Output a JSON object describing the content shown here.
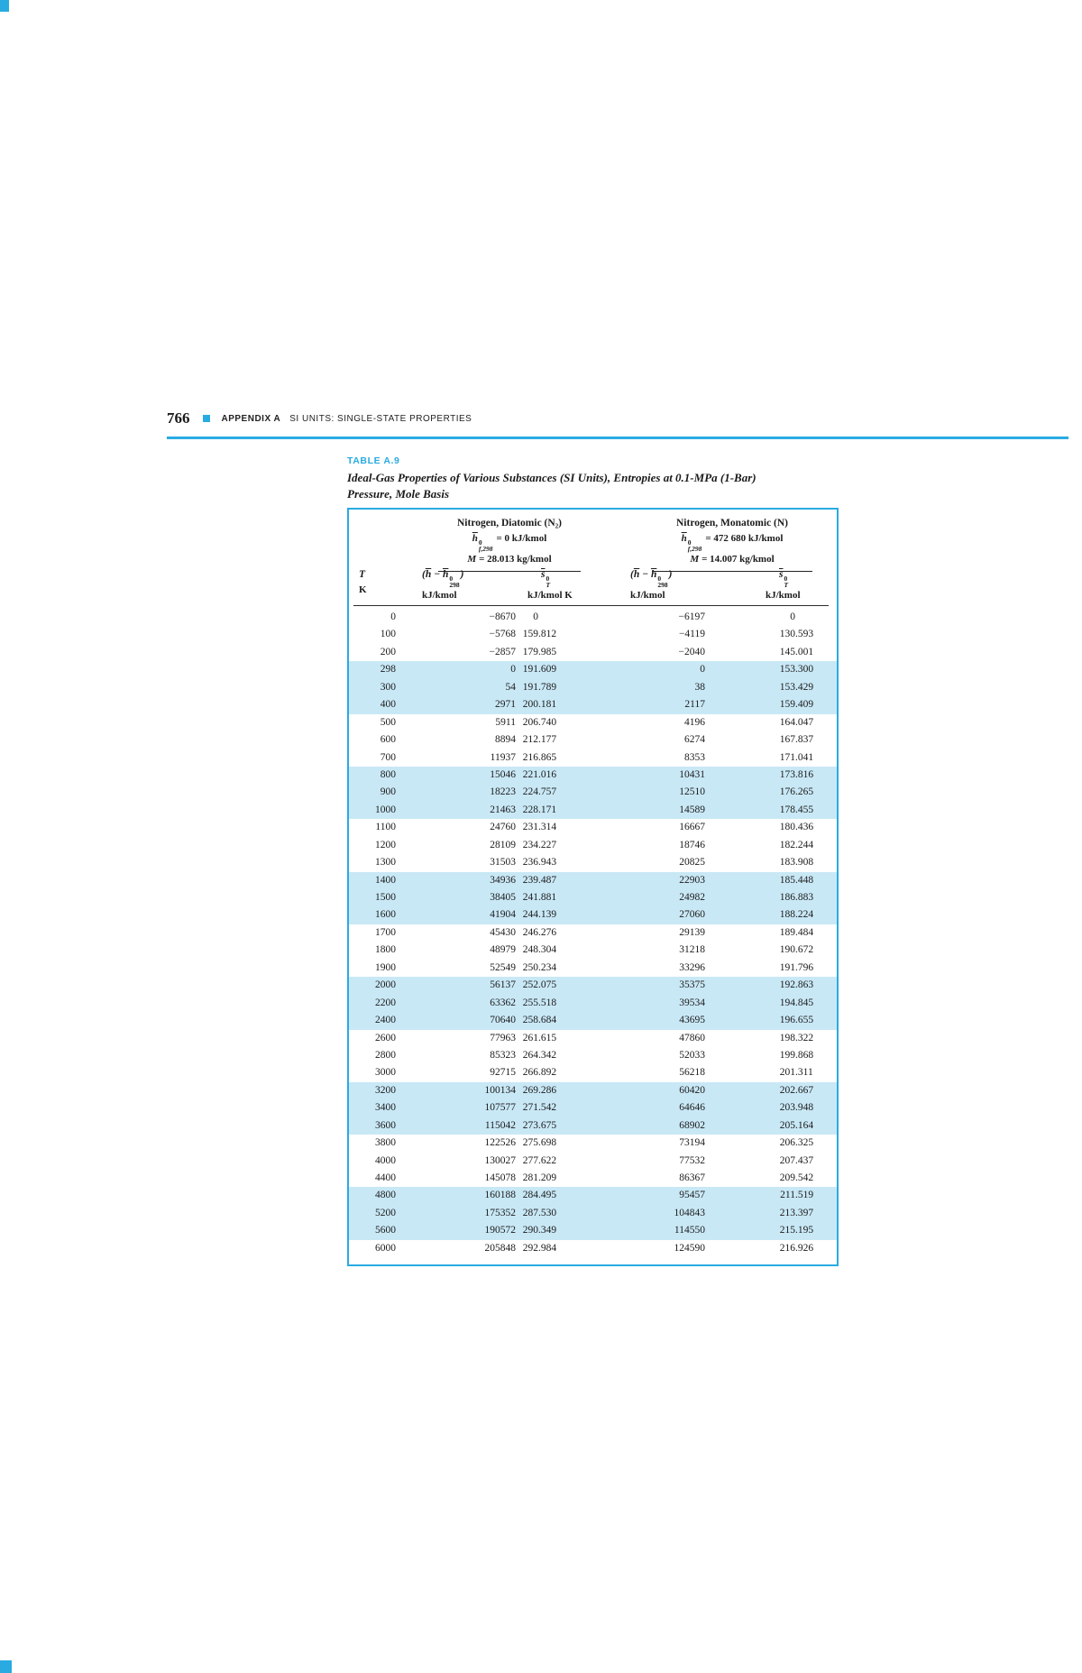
{
  "page": {
    "accent_color": "#29ABE2",
    "banding_color": "#C9E8F6",
    "page_number": "766",
    "appendix_label": "APPENDIX A",
    "appendix_title": "SI UNITS: SINGLE-STATE PROPERTIES"
  },
  "table": {
    "label": "TABLE A.9",
    "title_line1": "Ideal-Gas Properties of Various Substances (SI Units), Entropies at 0.1-MPa (1-Bar)",
    "title_line2": "Pressure, Mole Basis",
    "groups": [
      {
        "name": "Nitrogen, Diatomic (N₂)",
        "hf": {
          "base": "h",
          "sup": "0",
          "sub": "f,298",
          "value": "= 0 kJ/kmol"
        },
        "molar": {
          "symbol": "M",
          "value": "= 28.013 kg/kmol"
        }
      },
      {
        "name": "Nitrogen, Monatomic (N)",
        "hf": {
          "base": "h",
          "sup": "0",
          "sub": "f,298",
          "value": "= 472 680 kJ/kmol"
        },
        "molar": {
          "symbol": "M",
          "value": "= 14.007 kg/kmol"
        }
      }
    ],
    "math": {
      "dh": {
        "open": "(",
        "h1": "h",
        "minus": " − ",
        "h2": "h",
        "sup": "0",
        "sub": "298",
        "close": ")"
      },
      "s": {
        "base": "s",
        "sup": "0",
        "sub": "T"
      }
    },
    "columns": [
      {
        "head": "T",
        "unit": "K"
      },
      {
        "unit": "kJ/kmol"
      },
      {
        "unit": "kJ/kmol K"
      },
      {
        "unit": "kJ/kmol"
      },
      {
        "unit": "kJ/kmol"
      }
    ],
    "band_group_size": 3,
    "rows": [
      [
        "0",
        "−8670",
        "0",
        "−6197",
        "0"
      ],
      [
        "100",
        "−5768",
        "159.812",
        "−4119",
        "130.593"
      ],
      [
        "200",
        "−2857",
        "179.985",
        "−2040",
        "145.001"
      ],
      [
        "298",
        "0",
        "191.609",
        "0",
        "153.300"
      ],
      [
        "300",
        "54",
        "191.789",
        "38",
        "153.429"
      ],
      [
        "400",
        "2971",
        "200.181",
        "2117",
        "159.409"
      ],
      [
        "500",
        "5911",
        "206.740",
        "4196",
        "164.047"
      ],
      [
        "600",
        "8894",
        "212.177",
        "6274",
        "167.837"
      ],
      [
        "700",
        "11937",
        "216.865",
        "8353",
        "171.041"
      ],
      [
        "800",
        "15046",
        "221.016",
        "10431",
        "173.816"
      ],
      [
        "900",
        "18223",
        "224.757",
        "12510",
        "176.265"
      ],
      [
        "1000",
        "21463",
        "228.171",
        "14589",
        "178.455"
      ],
      [
        "1100",
        "24760",
        "231.314",
        "16667",
        "180.436"
      ],
      [
        "1200",
        "28109",
        "234.227",
        "18746",
        "182.244"
      ],
      [
        "1300",
        "31503",
        "236.943",
        "20825",
        "183.908"
      ],
      [
        "1400",
        "34936",
        "239.487",
        "22903",
        "185.448"
      ],
      [
        "1500",
        "38405",
        "241.881",
        "24982",
        "186.883"
      ],
      [
        "1600",
        "41904",
        "244.139",
        "27060",
        "188.224"
      ],
      [
        "1700",
        "45430",
        "246.276",
        "29139",
        "189.484"
      ],
      [
        "1800",
        "48979",
        "248.304",
        "31218",
        "190.672"
      ],
      [
        "1900",
        "52549",
        "250.234",
        "33296",
        "191.796"
      ],
      [
        "2000",
        "56137",
        "252.075",
        "35375",
        "192.863"
      ],
      [
        "2200",
        "63362",
        "255.518",
        "39534",
        "194.845"
      ],
      [
        "2400",
        "70640",
        "258.684",
        "43695",
        "196.655"
      ],
      [
        "2600",
        "77963",
        "261.615",
        "47860",
        "198.322"
      ],
      [
        "2800",
        "85323",
        "264.342",
        "52033",
        "199.868"
      ],
      [
        "3000",
        "92715",
        "266.892",
        "56218",
        "201.311"
      ],
      [
        "3200",
        "100134",
        "269.286",
        "60420",
        "202.667"
      ],
      [
        "3400",
        "107577",
        "271.542",
        "64646",
        "203.948"
      ],
      [
        "3600",
        "115042",
        "273.675",
        "68902",
        "205.164"
      ],
      [
        "3800",
        "122526",
        "275.698",
        "73194",
        "206.325"
      ],
      [
        "4000",
        "130027",
        "277.622",
        "77532",
        "207.437"
      ],
      [
        "4400",
        "145078",
        "281.209",
        "86367",
        "209.542"
      ],
      [
        "4800",
        "160188",
        "284.495",
        "95457",
        "211.519"
      ],
      [
        "5200",
        "175352",
        "287.530",
        "104843",
        "213.397"
      ],
      [
        "5600",
        "190572",
        "290.349",
        "114550",
        "215.195"
      ],
      [
        "6000",
        "205848",
        "292.984",
        "124590",
        "216.926"
      ]
    ]
  }
}
